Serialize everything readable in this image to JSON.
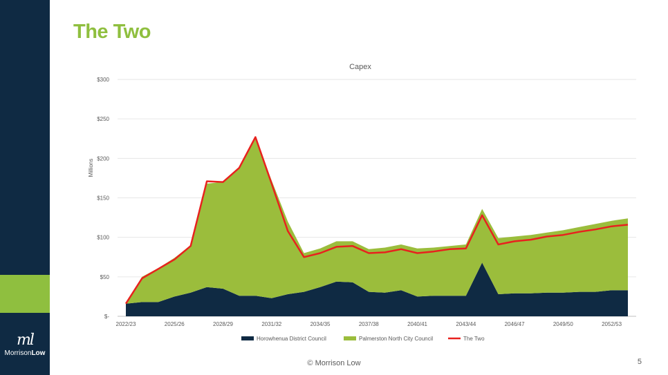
{
  "slide": {
    "title": "The Two",
    "footer": "© Morrison Low",
    "page_number": "5"
  },
  "logo": {
    "mark": "ml",
    "text_regular": "Morrison",
    "text_bold": "Low"
  },
  "colors": {
    "sidebar": "#0f2a43",
    "accent_green": "#8fbf3f",
    "series_dark": "#0f2a43",
    "series_green": "#9bbd3c",
    "series_line": "#e8211e"
  },
  "chart_data": {
    "type": "area",
    "title": "Capex",
    "ylabel": "Millions",
    "xlabel": "",
    "ylim": [
      0,
      300
    ],
    "yticks": [
      0,
      50,
      100,
      150,
      200,
      250,
      300
    ],
    "ytick_labels": [
      "$-",
      "$50",
      "$100",
      "$150",
      "$200",
      "$250",
      "$300"
    ],
    "x": [
      "2022/23",
      "2023/24",
      "2024/25",
      "2025/26",
      "2026/27",
      "2027/28",
      "2028/29",
      "2029/30",
      "2030/31",
      "2031/32",
      "2032/33",
      "2033/34",
      "2034/35",
      "2035/36",
      "2036/37",
      "2037/38",
      "2038/39",
      "2039/40",
      "2040/41",
      "2041/42",
      "2042/43",
      "2043/44",
      "2044/45",
      "2045/46",
      "2046/47",
      "2047/48",
      "2048/49",
      "2049/50",
      "2050/51",
      "2051/52",
      "2052/53",
      "2053/54"
    ],
    "xtick_labels": [
      "2022/23",
      "2025/26",
      "2028/29",
      "2031/32",
      "2034/35",
      "2037/38",
      "2040/41",
      "2043/44",
      "2046/47",
      "2049/50",
      "2052/53"
    ],
    "stacked": true,
    "grid": true,
    "legend": "bottom",
    "series": [
      {
        "name": "Horowhenua District Council",
        "kind": "area",
        "values": [
          16,
          18,
          18,
          25,
          30,
          37,
          35,
          26,
          26,
          23,
          28,
          31,
          37,
          44,
          43,
          31,
          30,
          33,
          25,
          26,
          26,
          26,
          68,
          28,
          29,
          29,
          30,
          30,
          31,
          31,
          33,
          33
        ]
      },
      {
        "name": "Palmerston North City Council",
        "kind": "area",
        "values": [
          0,
          32,
          43,
          49,
          60,
          131,
          135,
          163,
          201,
          149,
          92,
          49,
          49,
          51,
          52,
          54,
          57,
          58,
          61,
          61,
          63,
          65,
          68,
          71,
          72,
          74,
          76,
          79,
          82,
          86,
          88,
          91
        ]
      },
      {
        "name": "The Two",
        "kind": "line",
        "values": [
          16,
          48,
          60,
          72,
          89,
          171,
          170,
          188,
          227,
          168,
          108,
          75,
          80,
          88,
          89,
          80,
          81,
          85,
          80,
          82,
          85,
          86,
          128,
          91,
          95,
          97,
          101,
          103,
          107,
          110,
          114,
          116
        ]
      }
    ]
  }
}
